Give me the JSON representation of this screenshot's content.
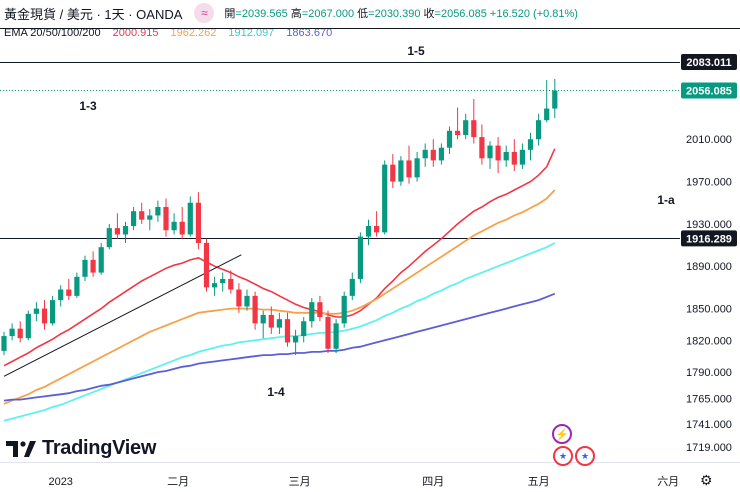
{
  "header": {
    "title": "黃金現貨 / 美元 · 1天 · OANDA",
    "plugin_icon": "wave-icon",
    "ohlc": {
      "open_label": "開",
      "open": "=2039.565",
      "high_label": "高",
      "high": "=2067.000",
      "low_label": "低",
      "low": "=2030.390",
      "close_label": "收",
      "close": "=2056.085",
      "change": "+16.520 (+0.81%)"
    },
    "currency": "USD"
  },
  "ema": {
    "label": "EMA 20/50/100/200",
    "values": [
      "2000.915",
      "1962.262",
      "1912.097",
      "1863.670"
    ],
    "colors": [
      "#f23645",
      "#f7a24b",
      "#5ff0f0",
      "#5b5fd6"
    ]
  },
  "colors": {
    "up": "#089981",
    "down": "#f23645",
    "grid": "#ffffff"
  },
  "brand": {
    "name": "TradingView"
  },
  "events": {
    "lightning": "lightning-icon",
    "flag": "us-flag-icon"
  },
  "settings_icon": "gear-icon",
  "chart_data": {
    "type": "candlestick",
    "instrument": "黃金現貨 / 美元",
    "y_ticks": [
      "2083.011",
      "2056.085",
      "2010.000",
      "1970.000",
      "1930.000",
      "1916.289",
      "1890.000",
      "1850.000",
      "1820.000",
      "1790.000",
      "1765.000",
      "1741.000",
      "1719.000"
    ],
    "y_tick_values": [
      2083.011,
      2056.085,
      2010,
      1970,
      1930,
      1916.289,
      1890,
      1850,
      1820,
      1790,
      1765,
      1741,
      1719
    ],
    "x_ticks": [
      "2023",
      "二月",
      "三月",
      "四月",
      "五月",
      "六月"
    ],
    "ylim": [
      1705,
      2100
    ],
    "horizontal_lines": [
      {
        "label": "2083.011",
        "value": 2083.011
      },
      {
        "label": "1916.289",
        "value": 1916.289
      }
    ],
    "last_price": 2056.085,
    "annotations": [
      "1-3",
      "1-4",
      "1-5",
      "1-a"
    ],
    "candles": [
      [
        1810,
        1828,
        1806,
        1824
      ],
      [
        1824,
        1836,
        1820,
        1831
      ],
      [
        1831,
        1838,
        1818,
        1822
      ],
      [
        1822,
        1848,
        1820,
        1845
      ],
      [
        1845,
        1856,
        1838,
        1850
      ],
      [
        1850,
        1858,
        1830,
        1836
      ],
      [
        1836,
        1862,
        1834,
        1858
      ],
      [
        1858,
        1872,
        1852,
        1868
      ],
      [
        1868,
        1878,
        1858,
        1862
      ],
      [
        1862,
        1884,
        1860,
        1880
      ],
      [
        1880,
        1900,
        1876,
        1896
      ],
      [
        1896,
        1904,
        1880,
        1884
      ],
      [
        1884,
        1912,
        1882,
        1908
      ],
      [
        1908,
        1930,
        1906,
        1926
      ],
      [
        1926,
        1940,
        1916,
        1920
      ],
      [
        1920,
        1932,
        1912,
        1928
      ],
      [
        1928,
        1946,
        1924,
        1942
      ],
      [
        1942,
        1950,
        1930,
        1934
      ],
      [
        1934,
        1944,
        1924,
        1938
      ],
      [
        1938,
        1952,
        1932,
        1946
      ],
      [
        1946,
        1954,
        1918,
        1924
      ],
      [
        1924,
        1940,
        1920,
        1932
      ],
      [
        1932,
        1946,
        1916,
        1920
      ],
      [
        1920,
        1956,
        1918,
        1950
      ],
      [
        1950,
        1960,
        1906,
        1912
      ],
      [
        1912,
        1916,
        1866,
        1870
      ],
      [
        1870,
        1880,
        1862,
        1874
      ],
      [
        1874,
        1884,
        1866,
        1878
      ],
      [
        1878,
        1886,
        1864,
        1868
      ],
      [
        1868,
        1874,
        1846,
        1852
      ],
      [
        1852,
        1868,
        1848,
        1862
      ],
      [
        1862,
        1866,
        1830,
        1836
      ],
      [
        1836,
        1848,
        1822,
        1844
      ],
      [
        1844,
        1852,
        1826,
        1832
      ],
      [
        1832,
        1846,
        1826,
        1840
      ],
      [
        1840,
        1846,
        1814,
        1818
      ],
      [
        1818,
        1830,
        1806,
        1824
      ],
      [
        1824,
        1842,
        1818,
        1838
      ],
      [
        1838,
        1860,
        1832,
        1856
      ],
      [
        1856,
        1862,
        1838,
        1842
      ],
      [
        1842,
        1848,
        1808,
        1812
      ],
      [
        1812,
        1840,
        1808,
        1836
      ],
      [
        1836,
        1866,
        1832,
        1862
      ],
      [
        1862,
        1884,
        1858,
        1878
      ],
      [
        1878,
        1922,
        1874,
        1918
      ],
      [
        1918,
        1934,
        1910,
        1928
      ],
      [
        1928,
        1942,
        1918,
        1922
      ],
      [
        1922,
        1990,
        1920,
        1986
      ],
      [
        1986,
        1996,
        1964,
        1970
      ],
      [
        1970,
        1994,
        1966,
        1990
      ],
      [
        1990,
        2004,
        1968,
        1974
      ],
      [
        1974,
        1998,
        1970,
        1992
      ],
      [
        1992,
        2006,
        1984,
        2000
      ],
      [
        2000,
        2010,
        1984,
        1990
      ],
      [
        1990,
        2006,
        1986,
        2002
      ],
      [
        2002,
        2022,
        1996,
        2018
      ],
      [
        2018,
        2040,
        2010,
        2014
      ],
      [
        2014,
        2034,
        2010,
        2028
      ],
      [
        2028,
        2048,
        2006,
        2012
      ],
      [
        2012,
        2024,
        1986,
        1992
      ],
      [
        1992,
        2008,
        1982,
        2004
      ],
      [
        2004,
        2012,
        1978,
        1990
      ],
      [
        1990,
        2004,
        1984,
        1998
      ],
      [
        1998,
        2010,
        1980,
        1986
      ],
      [
        1986,
        2006,
        1982,
        2000
      ],
      [
        2000,
        2016,
        1990,
        2010
      ],
      [
        2010,
        2034,
        2004,
        2028
      ],
      [
        2028,
        2066,
        2026,
        2039
      ],
      [
        2039,
        2067,
        2030,
        2056
      ]
    ],
    "series": [
      {
        "name": "EMA 20",
        "color": "#f23645",
        "values": [
          1796,
          1800,
          1804,
          1808,
          1813,
          1817,
          1821,
          1826,
          1830,
          1835,
          1840,
          1845,
          1850,
          1856,
          1861,
          1866,
          1871,
          1876,
          1880,
          1884,
          1888,
          1891,
          1893,
          1896,
          1898,
          1894,
          1890,
          1887,
          1884,
          1880,
          1877,
          1873,
          1869,
          1866,
          1862,
          1858,
          1854,
          1851,
          1849,
          1847,
          1844,
          1842,
          1842,
          1844,
          1848,
          1854,
          1860,
          1869,
          1876,
          1884,
          1890,
          1897,
          1904,
          1910,
          1916,
          1923,
          1930,
          1936,
          1942,
          1946,
          1951,
          1955,
          1958,
          1962,
          1966,
          1970,
          1976,
          1984,
          2001
        ]
      },
      {
        "name": "EMA 50",
        "color": "#f7a24b",
        "values": [
          1760,
          1763,
          1766,
          1769,
          1773,
          1776,
          1780,
          1784,
          1788,
          1792,
          1796,
          1800,
          1804,
          1808,
          1812,
          1816,
          1820,
          1824,
          1828,
          1831,
          1834,
          1837,
          1840,
          1843,
          1846,
          1847,
          1848,
          1849,
          1850,
          1850,
          1850,
          1850,
          1849,
          1849,
          1848,
          1847,
          1846,
          1846,
          1846,
          1846,
          1845,
          1845,
          1846,
          1848,
          1851,
          1855,
          1859,
          1864,
          1869,
          1874,
          1879,
          1884,
          1889,
          1894,
          1899,
          1904,
          1909,
          1914,
          1919,
          1923,
          1927,
          1931,
          1934,
          1938,
          1941,
          1945,
          1949,
          1954,
          1962
        ]
      },
      {
        "name": "EMA 100",
        "color": "#5ff0f0",
        "values": [
          1744,
          1746,
          1748,
          1750,
          1752,
          1754,
          1757,
          1759,
          1762,
          1765,
          1768,
          1771,
          1774,
          1777,
          1780,
          1783,
          1786,
          1789,
          1792,
          1795,
          1798,
          1801,
          1804,
          1806,
          1809,
          1811,
          1813,
          1815,
          1816,
          1818,
          1819,
          1820,
          1821,
          1822,
          1823,
          1824,
          1824,
          1825,
          1826,
          1827,
          1827,
          1828,
          1829,
          1831,
          1833,
          1836,
          1839,
          1843,
          1846,
          1850,
          1853,
          1857,
          1860,
          1864,
          1867,
          1871,
          1874,
          1878,
          1881,
          1884,
          1887,
          1890,
          1893,
          1896,
          1899,
          1902,
          1905,
          1908,
          1912
        ]
      },
      {
        "name": "EMA 200",
        "color": "#5b5fd6",
        "values": [
          1763,
          1764,
          1764,
          1765,
          1766,
          1767,
          1768,
          1769,
          1770,
          1772,
          1773,
          1775,
          1777,
          1778,
          1780,
          1782,
          1784,
          1786,
          1788,
          1790,
          1791,
          1793,
          1795,
          1796,
          1798,
          1799,
          1800,
          1801,
          1802,
          1803,
          1804,
          1805,
          1806,
          1806,
          1807,
          1807,
          1808,
          1808,
          1809,
          1809,
          1810,
          1810,
          1811,
          1813,
          1814,
          1816,
          1818,
          1820,
          1822,
          1824,
          1826,
          1828,
          1830,
          1832,
          1834,
          1836,
          1838,
          1840,
          1842,
          1844,
          1846,
          1848,
          1850,
          1852,
          1854,
          1856,
          1858,
          1861,
          1864
        ]
      }
    ],
    "trendline": {
      "from": [
        0,
        1786
      ],
      "to": [
        33,
        1880
      ]
    }
  }
}
